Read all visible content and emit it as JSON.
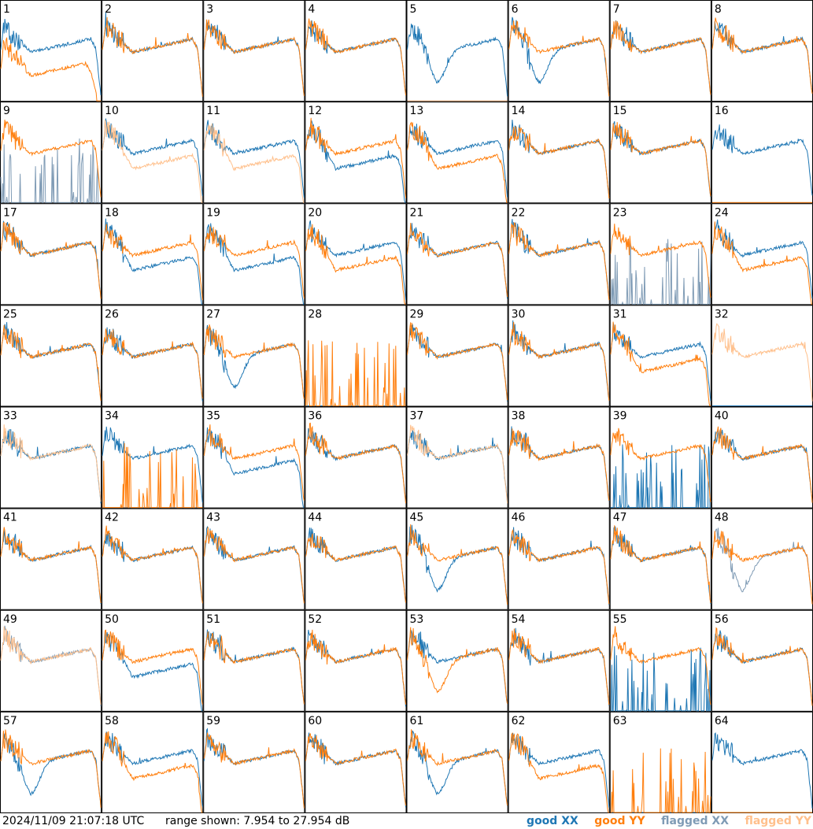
{
  "footer": {
    "timestamp": "2024/11/09 21:07:18 UTC",
    "range_label": "range shown: 7.954 to 27.954 dB",
    "legend": [
      {
        "label": "good XX",
        "color": "#1f77b4"
      },
      {
        "label": "good YY",
        "color": "#ff7f0e"
      },
      {
        "label": "flagged XX",
        "color": "#7f9bb5"
      },
      {
        "label": "flagged YY",
        "color": "#ffc08c"
      }
    ]
  },
  "chart_data": {
    "type": "line",
    "layout": "8x8 small multiples",
    "ylim_db": [
      7.954,
      27.954
    ],
    "series_names": [
      "good XX",
      "good YY",
      "flagged XX",
      "flagged YY"
    ],
    "tiles": [
      {
        "id": "1",
        "xx": "good",
        "yy": "good",
        "xx_shape": "normal",
        "yy_shape": "drop"
      },
      {
        "id": "2",
        "xx": "good",
        "yy": "good",
        "xx_shape": "normal",
        "yy_shape": "normal"
      },
      {
        "id": "3",
        "xx": "good",
        "yy": "good",
        "xx_shape": "normal",
        "yy_shape": "normal"
      },
      {
        "id": "4",
        "xx": "good",
        "yy": "good",
        "xx_shape": "normal",
        "yy_shape": "normal"
      },
      {
        "id": "5",
        "xx": "good",
        "yy": "flagged",
        "xx_shape": "dip",
        "yy_shape": "dead"
      },
      {
        "id": "6",
        "xx": "good",
        "yy": "good",
        "xx_shape": "dip",
        "yy_shape": "normal"
      },
      {
        "id": "7",
        "xx": "good",
        "yy": "good",
        "xx_shape": "normal",
        "yy_shape": "normal"
      },
      {
        "id": "8",
        "xx": "good",
        "yy": "good",
        "xx_shape": "normal",
        "yy_shape": "normal"
      },
      {
        "id": "9",
        "xx": "flagged",
        "yy": "good",
        "xx_shape": "spiky",
        "yy_shape": "normal"
      },
      {
        "id": "10",
        "xx": "good",
        "yy": "flagged",
        "xx_shape": "normal",
        "yy_shape": "low"
      },
      {
        "id": "11",
        "xx": "good",
        "yy": "flagged",
        "xx_shape": "normal",
        "yy_shape": "low"
      },
      {
        "id": "12",
        "xx": "good",
        "yy": "good",
        "xx_shape": "low",
        "yy_shape": "normal"
      },
      {
        "id": "13",
        "xx": "good",
        "yy": "good",
        "xx_shape": "normal",
        "yy_shape": "low"
      },
      {
        "id": "14",
        "xx": "good",
        "yy": "good",
        "xx_shape": "normal",
        "yy_shape": "normal"
      },
      {
        "id": "15",
        "xx": "good",
        "yy": "good",
        "xx_shape": "normal",
        "yy_shape": "normal"
      },
      {
        "id": "16",
        "xx": "good",
        "yy": "good",
        "xx_shape": "normal",
        "yy_shape": "dead"
      },
      {
        "id": "17",
        "xx": "good",
        "yy": "good",
        "xx_shape": "normal",
        "yy_shape": "normal"
      },
      {
        "id": "18",
        "xx": "good",
        "yy": "good",
        "xx_shape": "low",
        "yy_shape": "normal"
      },
      {
        "id": "19",
        "xx": "good",
        "yy": "good",
        "xx_shape": "low",
        "yy_shape": "normal"
      },
      {
        "id": "20",
        "xx": "good",
        "yy": "good",
        "xx_shape": "normal",
        "yy_shape": "low"
      },
      {
        "id": "21",
        "xx": "good",
        "yy": "good",
        "xx_shape": "normal",
        "yy_shape": "normal"
      },
      {
        "id": "22",
        "xx": "good",
        "yy": "good",
        "xx_shape": "normal",
        "yy_shape": "normal"
      },
      {
        "id": "23",
        "xx": "flagged",
        "yy": "good",
        "xx_shape": "spiky",
        "yy_shape": "normal"
      },
      {
        "id": "24",
        "xx": "good",
        "yy": "good",
        "xx_shape": "normal",
        "yy_shape": "low"
      },
      {
        "id": "25",
        "xx": "good",
        "yy": "good",
        "xx_shape": "normal",
        "yy_shape": "normal"
      },
      {
        "id": "26",
        "xx": "good",
        "yy": "good",
        "xx_shape": "normal",
        "yy_shape": "normal"
      },
      {
        "id": "27",
        "xx": "good",
        "yy": "good",
        "xx_shape": "dip",
        "yy_shape": "normal"
      },
      {
        "id": "28",
        "xx": "good",
        "yy": "good",
        "xx_shape": "dead",
        "yy_shape": "spiky"
      },
      {
        "id": "29",
        "xx": "good",
        "yy": "good",
        "xx_shape": "normal",
        "yy_shape": "normal"
      },
      {
        "id": "30",
        "xx": "good",
        "yy": "good",
        "xx_shape": "normal",
        "yy_shape": "normal"
      },
      {
        "id": "31",
        "xx": "good",
        "yy": "good",
        "xx_shape": "normal",
        "yy_shape": "low"
      },
      {
        "id": "32",
        "xx": "good",
        "yy": "flagged",
        "xx_shape": "dead",
        "yy_shape": "normal"
      },
      {
        "id": "33",
        "xx": "good",
        "yy": "flagged",
        "xx_shape": "normal",
        "yy_shape": "normal"
      },
      {
        "id": "34",
        "xx": "good",
        "yy": "good",
        "xx_shape": "normal",
        "yy_shape": "spiky"
      },
      {
        "id": "35",
        "xx": "good",
        "yy": "good",
        "xx_shape": "low",
        "yy_shape": "normal"
      },
      {
        "id": "36",
        "xx": "good",
        "yy": "good",
        "xx_shape": "normal",
        "yy_shape": "normal"
      },
      {
        "id": "37",
        "xx": "good",
        "yy": "flagged",
        "xx_shape": "normal",
        "yy_shape": "normal"
      },
      {
        "id": "38",
        "xx": "good",
        "yy": "good",
        "xx_shape": "normal",
        "yy_shape": "normal"
      },
      {
        "id": "39",
        "xx": "good",
        "yy": "good",
        "xx_shape": "spiky",
        "yy_shape": "normal"
      },
      {
        "id": "40",
        "xx": "good",
        "yy": "good",
        "xx_shape": "normal",
        "yy_shape": "normal"
      },
      {
        "id": "41",
        "xx": "good",
        "yy": "good",
        "xx_shape": "normal",
        "yy_shape": "normal"
      },
      {
        "id": "42",
        "xx": "good",
        "yy": "good",
        "xx_shape": "normal",
        "yy_shape": "normal"
      },
      {
        "id": "43",
        "xx": "good",
        "yy": "good",
        "xx_shape": "normal",
        "yy_shape": "normal"
      },
      {
        "id": "44",
        "xx": "good",
        "yy": "good",
        "xx_shape": "normal",
        "yy_shape": "normal"
      },
      {
        "id": "45",
        "xx": "good",
        "yy": "good",
        "xx_shape": "dip",
        "yy_shape": "normal"
      },
      {
        "id": "46",
        "xx": "good",
        "yy": "good",
        "xx_shape": "normal",
        "yy_shape": "normal"
      },
      {
        "id": "47",
        "xx": "good",
        "yy": "good",
        "xx_shape": "normal",
        "yy_shape": "normal"
      },
      {
        "id": "48",
        "xx": "flagged",
        "yy": "good",
        "xx_shape": "dip",
        "yy_shape": "normal"
      },
      {
        "id": "49",
        "xx": "flagged",
        "yy": "flagged",
        "xx_shape": "normal",
        "yy_shape": "normal"
      },
      {
        "id": "50",
        "xx": "good",
        "yy": "good",
        "xx_shape": "low",
        "yy_shape": "normal"
      },
      {
        "id": "51",
        "xx": "good",
        "yy": "good",
        "xx_shape": "normal",
        "yy_shape": "normal"
      },
      {
        "id": "52",
        "xx": "good",
        "yy": "good",
        "xx_shape": "normal",
        "yy_shape": "normal"
      },
      {
        "id": "53",
        "xx": "good",
        "yy": "good",
        "xx_shape": "normal",
        "yy_shape": "dip"
      },
      {
        "id": "54",
        "xx": "good",
        "yy": "good",
        "xx_shape": "normal",
        "yy_shape": "normal"
      },
      {
        "id": "55",
        "xx": "good",
        "yy": "good",
        "xx_shape": "spiky",
        "yy_shape": "normal"
      },
      {
        "id": "56",
        "xx": "good",
        "yy": "good",
        "xx_shape": "normal",
        "yy_shape": "normal"
      },
      {
        "id": "57",
        "xx": "good",
        "yy": "good",
        "xx_shape": "dip",
        "yy_shape": "normal"
      },
      {
        "id": "58",
        "xx": "good",
        "yy": "good",
        "xx_shape": "normal",
        "yy_shape": "low"
      },
      {
        "id": "59",
        "xx": "good",
        "yy": "good",
        "xx_shape": "normal",
        "yy_shape": "normal"
      },
      {
        "id": "60",
        "xx": "good",
        "yy": "good",
        "xx_shape": "normal",
        "yy_shape": "normal"
      },
      {
        "id": "61",
        "xx": "good",
        "yy": "good",
        "xx_shape": "dip",
        "yy_shape": "normal"
      },
      {
        "id": "62",
        "xx": "good",
        "yy": "good",
        "xx_shape": "normal",
        "yy_shape": "low"
      },
      {
        "id": "63",
        "xx": "good",
        "yy": "good",
        "xx_shape": "dead",
        "yy_shape": "spiky"
      },
      {
        "id": "64",
        "xx": "good",
        "yy": "good",
        "xx_shape": "normal",
        "yy_shape": "dead"
      }
    ]
  }
}
